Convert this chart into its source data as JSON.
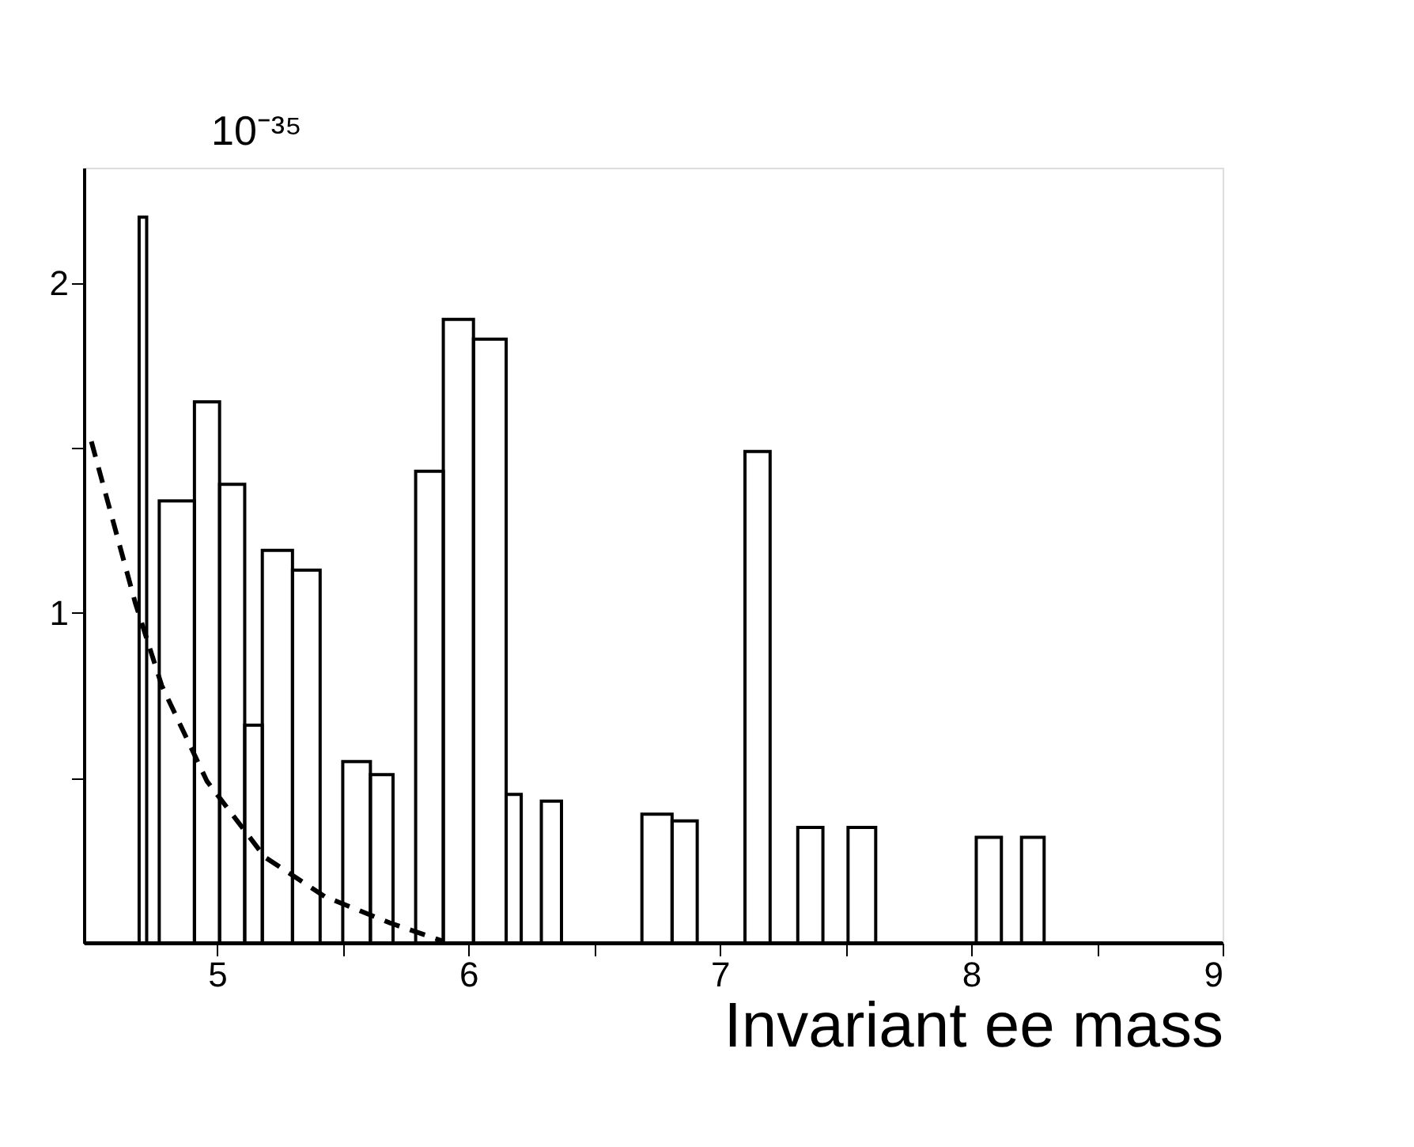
{
  "chart_data": {
    "type": "histogram",
    "xlabel": "Invariant ee mass",
    "ylabel": "10⁻³⁵",
    "bins": [
      4.47,
      4.69,
      4.72,
      4.77,
      4.91,
      5.01,
      5.11,
      5.18,
      5.3,
      5.41,
      5.5,
      5.61,
      5.7,
      5.79,
      5.9,
      6.02,
      6.15,
      6.21,
      6.29,
      6.37,
      6.69,
      6.81,
      6.91,
      7.1,
      7.2,
      7.31,
      7.41,
      7.51,
      7.62,
      8.02,
      8.12,
      8.2,
      8.29,
      9.0
    ],
    "values": [
      0,
      2.2,
      0,
      1.34,
      1.64,
      1.39,
      0.66,
      1.19,
      1.13,
      0,
      0.55,
      0.51,
      0,
      1.43,
      1.89,
      1.83,
      0.45,
      0,
      0.43,
      0,
      0.39,
      0.37,
      0,
      1.49,
      0,
      0.35,
      0,
      0.35,
      0,
      0.32,
      0,
      0.32,
      0
    ],
    "color": "#000000",
    "series": [
      {
        "type": "line",
        "color": "#000000",
        "line_style": "dashed",
        "x": [
          4.5,
          4.675,
          4.78,
          4.96,
          5.19,
          5.43,
          5.69,
          5.9
        ],
        "values": [
          1.52,
          1.03,
          0.78,
          0.49,
          0.26,
          0.14,
          0.06,
          0.005
        ]
      }
    ],
    "xlim": [
      4.47,
      9.0
    ],
    "ylim": [
      0,
      2.35
    ],
    "xticks": [
      5,
      {
        "value": 5.5,
        "label": null
      },
      6,
      {
        "value": 6.5,
        "label": null
      },
      7,
      {
        "value": 7.5,
        "label": null
      },
      8,
      {
        "value": 8.5,
        "label": null
      },
      9
    ],
    "yticks": [
      {
        "value": 0.5,
        "label": null
      },
      1,
      {
        "value": 1.5,
        "label": null
      },
      2
    ],
    "grid": false,
    "marker": "none"
  }
}
